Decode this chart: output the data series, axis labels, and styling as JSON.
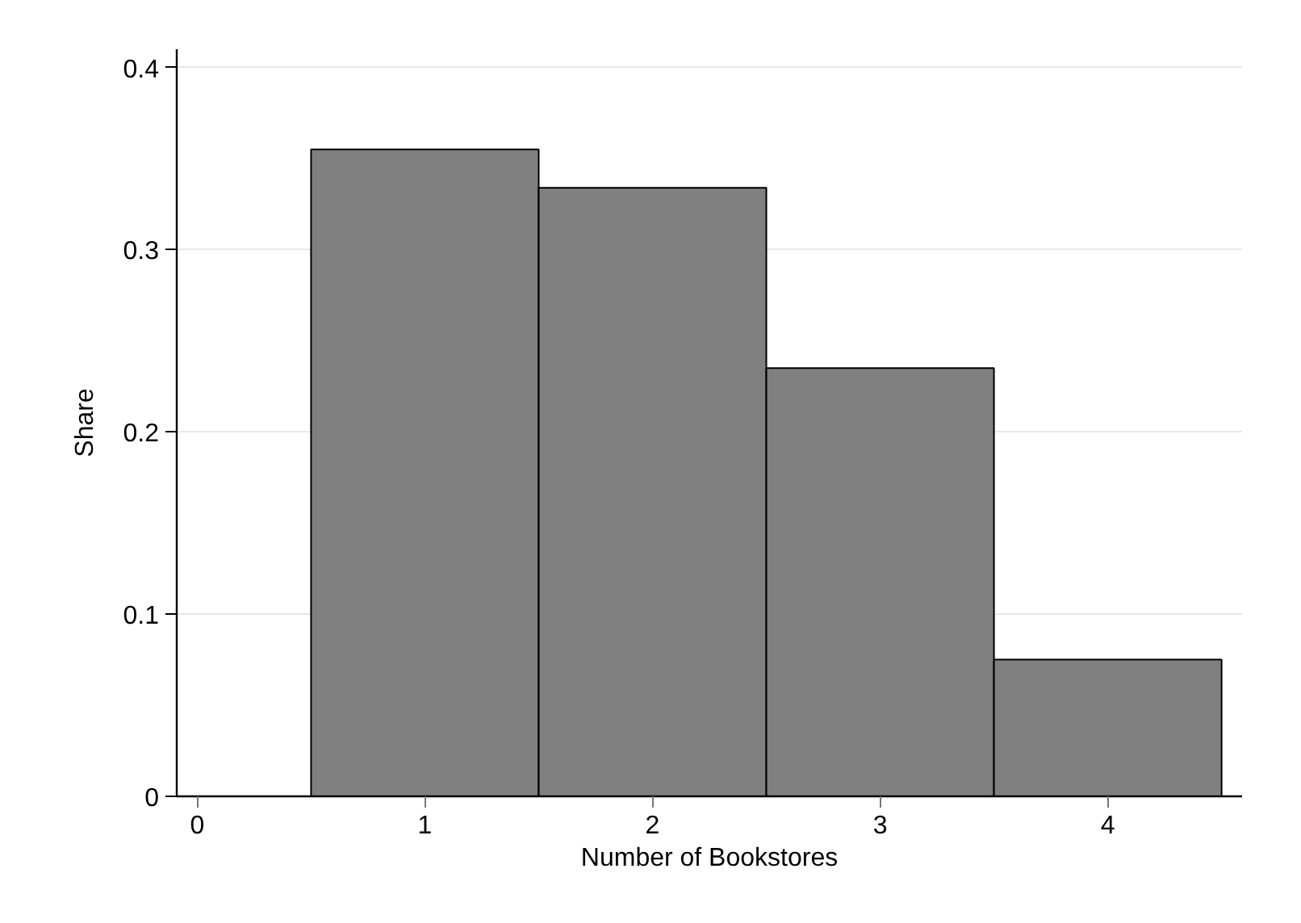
{
  "chart_data": {
    "type": "histogram",
    "xlabel": "Number of Bookstores",
    "ylabel": "Share",
    "bins": [
      0.5,
      1.5,
      2.5,
      3.5,
      4.5
    ],
    "values": [
      0.355,
      0.334,
      0.235,
      0.075
    ],
    "color": "#808080",
    "xlim": [
      -0.09,
      4.59
    ],
    "xticks": [
      0,
      1,
      2,
      3,
      4
    ],
    "ylim": [
      0,
      0.41
    ],
    "yticks": [
      0,
      0.1,
      0.2,
      0.3,
      0.4
    ],
    "grid": "y"
  }
}
